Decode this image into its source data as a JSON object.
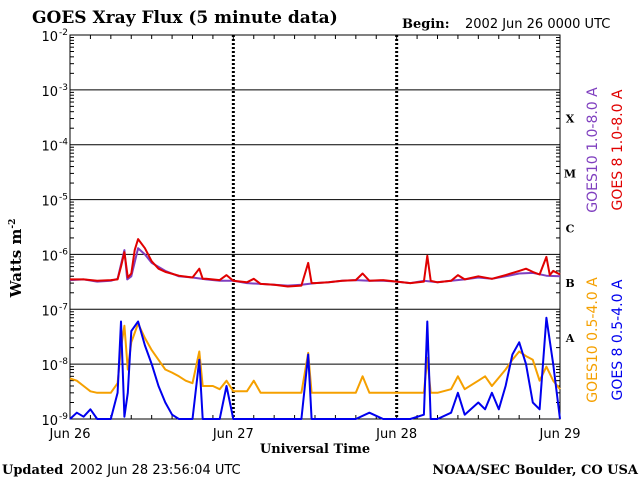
{
  "header": {
    "title": "GOES Xray Flux (5 minute data)",
    "begin_label": "Begin:",
    "begin_value": "2002 Jun 26 0000 UTC"
  },
  "footer": {
    "updated_label": "Updated",
    "updated_value": "2002 Jun 28 23:56:04 UTC",
    "credit": "NOAA/SEC Boulder, CO USA"
  },
  "colors": {
    "goes10_long": "#7f3fbf",
    "goes8_long": "#e00000",
    "goes10_short": "#f5a000",
    "goes8_short": "#0000ee"
  },
  "chart_data": {
    "type": "line",
    "title": "GOES Xray Flux (5 minute data)",
    "xlabel": "Universal Time",
    "ylabel": "Watts m",
    "ylabel_sup": "-2",
    "y_scale": "log",
    "ylim": [
      1e-09,
      0.01
    ],
    "y_ticks": [
      {
        "base": "10",
        "exp": "-9",
        "value": 1e-09
      },
      {
        "base": "10",
        "exp": "-8",
        "value": 1e-08
      },
      {
        "base": "10",
        "exp": "-7",
        "value": 1e-07
      },
      {
        "base": "10",
        "exp": "-6",
        "value": 1e-06
      },
      {
        "base": "10",
        "exp": "-5",
        "value": 1e-05
      },
      {
        "base": "10",
        "exp": "-4",
        "value": 0.0001
      },
      {
        "base": "10",
        "exp": "-3",
        "value": 0.001
      },
      {
        "base": "10",
        "exp": "-2",
        "value": 0.01
      }
    ],
    "xlim": [
      0,
      72
    ],
    "x_unit": "hours since 2002 Jun 26 0000 UTC",
    "x_ticks": [
      {
        "label": "Jun 26",
        "value": 0
      },
      {
        "label": "Jun 27",
        "value": 24
      },
      {
        "label": "Jun 28",
        "value": 48
      },
      {
        "label": "Jun 29",
        "value": 72
      }
    ],
    "flare_classes": [
      {
        "label": "X",
        "value": 0.0003
      },
      {
        "label": "M",
        "value": 3e-05
      },
      {
        "label": "C",
        "value": 3e-06
      },
      {
        "label": "B",
        "value": 3e-07
      },
      {
        "label": "A",
        "value": 3e-08
      }
    ],
    "series": [
      {
        "name": "GOES10 1.0-8.0 A",
        "color": "#7f3fbf",
        "points": [
          [
            0,
            3.4e-07
          ],
          [
            2,
            3.5e-07
          ],
          [
            4,
            3.2e-07
          ],
          [
            6,
            3.3e-07
          ],
          [
            7,
            3.6e-07
          ],
          [
            8,
            1.2e-06
          ],
          [
            8.4,
            3.5e-07
          ],
          [
            9,
            4e-07
          ],
          [
            10,
            1.3e-06
          ],
          [
            11,
            1e-06
          ],
          [
            12,
            7e-07
          ],
          [
            14,
            5e-07
          ],
          [
            16,
            4e-07
          ],
          [
            18,
            3.8e-07
          ],
          [
            20,
            3.5e-07
          ],
          [
            22,
            3.3e-07
          ],
          [
            24,
            3.3e-07
          ],
          [
            26,
            3e-07
          ],
          [
            28,
            2.9e-07
          ],
          [
            30,
            2.8e-07
          ],
          [
            32,
            2.7e-07
          ],
          [
            34,
            2.8e-07
          ],
          [
            36,
            3e-07
          ],
          [
            38,
            3.1e-07
          ],
          [
            40,
            3.3e-07
          ],
          [
            42,
            3.4e-07
          ],
          [
            44,
            3.3e-07
          ],
          [
            46,
            3.3e-07
          ],
          [
            48,
            3.2e-07
          ],
          [
            50,
            3e-07
          ],
          [
            52,
            3.3e-07
          ],
          [
            54,
            3.1e-07
          ],
          [
            56,
            3.3e-07
          ],
          [
            58,
            3.5e-07
          ],
          [
            60,
            3.8e-07
          ],
          [
            62,
            3.6e-07
          ],
          [
            64,
            4e-07
          ],
          [
            66,
            4.5e-07
          ],
          [
            68,
            4.6e-07
          ],
          [
            70,
            4.1e-07
          ],
          [
            72,
            4e-07
          ]
        ]
      },
      {
        "name": "GOES 8 1.0-8.0 A",
        "color": "#e00000",
        "points": [
          [
            0,
            3.5e-07
          ],
          [
            2,
            3.5e-07
          ],
          [
            4,
            3.3e-07
          ],
          [
            6,
            3.4e-07
          ],
          [
            7,
            3.5e-07
          ],
          [
            7.5,
            6e-07
          ],
          [
            8,
            1.1e-06
          ],
          [
            8.5,
            3.8e-07
          ],
          [
            9,
            4.5e-07
          ],
          [
            9.5,
            1.2e-06
          ],
          [
            10,
            1.9e-06
          ],
          [
            11,
            1.3e-06
          ],
          [
            12,
            7.5e-07
          ],
          [
            13,
            5.5e-07
          ],
          [
            14,
            4.8e-07
          ],
          [
            16,
            4.1e-07
          ],
          [
            18,
            3.8e-07
          ],
          [
            19,
            5.5e-07
          ],
          [
            19.5,
            3.6e-07
          ],
          [
            20,
            3.6e-07
          ],
          [
            22,
            3.4e-07
          ],
          [
            23,
            4.2e-07
          ],
          [
            24,
            3.3e-07
          ],
          [
            26,
            3.1e-07
          ],
          [
            27,
            3.6e-07
          ],
          [
            28,
            2.9e-07
          ],
          [
            30,
            2.8e-07
          ],
          [
            32,
            2.6e-07
          ],
          [
            34,
            2.7e-07
          ],
          [
            35,
            7e-07
          ],
          [
            35.5,
            3e-07
          ],
          [
            36,
            3e-07
          ],
          [
            38,
            3.1e-07
          ],
          [
            40,
            3.3e-07
          ],
          [
            42,
            3.4e-07
          ],
          [
            43,
            4.5e-07
          ],
          [
            44,
            3.3e-07
          ],
          [
            46,
            3.4e-07
          ],
          [
            48,
            3.2e-07
          ],
          [
            50,
            3e-07
          ],
          [
            52,
            3.2e-07
          ],
          [
            52.5,
            9.5e-07
          ],
          [
            53,
            3.3e-07
          ],
          [
            54,
            3.1e-07
          ],
          [
            56,
            3.3e-07
          ],
          [
            57,
            4.2e-07
          ],
          [
            58,
            3.5e-07
          ],
          [
            60,
            4e-07
          ],
          [
            62,
            3.6e-07
          ],
          [
            64,
            4.2e-07
          ],
          [
            66,
            5e-07
          ],
          [
            67,
            5.5e-07
          ],
          [
            68,
            4.8e-07
          ],
          [
            69,
            4.3e-07
          ],
          [
            70,
            9e-07
          ],
          [
            70.5,
            4.2e-07
          ],
          [
            71,
            5e-07
          ],
          [
            72,
            4.3e-07
          ]
        ]
      },
      {
        "name": "GOES10 0.5-4.0 A",
        "color": "#f5a000",
        "points": [
          [
            0,
            5.5e-09
          ],
          [
            1,
            5e-09
          ],
          [
            2,
            4e-09
          ],
          [
            3,
            3.2e-09
          ],
          [
            4,
            3e-09
          ],
          [
            6,
            3e-09
          ],
          [
            7,
            4.5e-09
          ],
          [
            7.5,
            2e-08
          ],
          [
            8,
            5e-08
          ],
          [
            8.5,
            8e-09
          ],
          [
            9,
            2.5e-08
          ],
          [
            10,
            5.5e-08
          ],
          [
            11,
            3e-08
          ],
          [
            12,
            1.8e-08
          ],
          [
            13,
            1.2e-08
          ],
          [
            14,
            8e-09
          ],
          [
            15,
            7e-09
          ],
          [
            16,
            6e-09
          ],
          [
            17,
            5e-09
          ],
          [
            18,
            4.5e-09
          ],
          [
            19,
            1.7e-08
          ],
          [
            19.5,
            4e-09
          ],
          [
            20,
            4e-09
          ],
          [
            21,
            4e-09
          ],
          [
            22,
            3.5e-09
          ],
          [
            23,
            5e-09
          ],
          [
            24,
            3.2e-09
          ],
          [
            26,
            3.2e-09
          ],
          [
            27,
            5e-09
          ],
          [
            28,
            3e-09
          ],
          [
            30,
            3e-09
          ],
          [
            32,
            3e-09
          ],
          [
            34,
            3e-09
          ],
          [
            35,
            1.6e-08
          ],
          [
            35.5,
            3e-09
          ],
          [
            36,
            3e-09
          ],
          [
            38,
            3e-09
          ],
          [
            40,
            3e-09
          ],
          [
            42,
            3e-09
          ],
          [
            43,
            6e-09
          ],
          [
            44,
            3e-09
          ],
          [
            46,
            3e-09
          ],
          [
            48,
            3e-09
          ],
          [
            50,
            3e-09
          ],
          [
            52,
            3e-09
          ],
          [
            52.5,
            1.3e-08
          ],
          [
            53,
            3e-09
          ],
          [
            54,
            3e-09
          ],
          [
            56,
            3.5e-09
          ],
          [
            57,
            6e-09
          ],
          [
            58,
            3.5e-09
          ],
          [
            60,
            5e-09
          ],
          [
            61,
            6e-09
          ],
          [
            62,
            4e-09
          ],
          [
            64,
            8e-09
          ],
          [
            65,
            1.2e-08
          ],
          [
            66,
            1.7e-08
          ],
          [
            67,
            1.4e-08
          ],
          [
            68,
            1.2e-08
          ],
          [
            69,
            5e-09
          ],
          [
            70,
            9e-09
          ],
          [
            71,
            5e-09
          ],
          [
            72,
            3.5e-09
          ]
        ]
      },
      {
        "name": "GOES 8 0.5-4.0 A",
        "color": "#0000ee",
        "points": [
          [
            0,
            1e-09
          ],
          [
            1,
            1.3e-09
          ],
          [
            2,
            1.1e-09
          ],
          [
            3,
            1.5e-09
          ],
          [
            4,
            1e-09
          ],
          [
            6,
            1e-09
          ],
          [
            7,
            3e-09
          ],
          [
            7.5,
            6e-08
          ],
          [
            8,
            1.1e-09
          ],
          [
            8.5,
            3e-09
          ],
          [
            9,
            4e-08
          ],
          [
            10,
            6e-08
          ],
          [
            11,
            2.2e-08
          ],
          [
            12,
            1e-08
          ],
          [
            13,
            4e-09
          ],
          [
            14,
            2e-09
          ],
          [
            15,
            1.2e-09
          ],
          [
            16,
            1e-09
          ],
          [
            18,
            1e-09
          ],
          [
            19,
            1.2e-08
          ],
          [
            19.5,
            1e-09
          ],
          [
            20,
            1e-09
          ],
          [
            22,
            1e-09
          ],
          [
            23,
            4e-09
          ],
          [
            24,
            1e-09
          ],
          [
            26,
            1e-09
          ],
          [
            28,
            1e-09
          ],
          [
            30,
            1e-09
          ],
          [
            32,
            1e-09
          ],
          [
            34,
            1e-09
          ],
          [
            35,
            1.5e-08
          ],
          [
            35.5,
            1e-09
          ],
          [
            36,
            1e-09
          ],
          [
            38,
            1e-09
          ],
          [
            40,
            1e-09
          ],
          [
            42,
            1e-09
          ],
          [
            44,
            1.3e-09
          ],
          [
            46,
            1e-09
          ],
          [
            48,
            1e-09
          ],
          [
            50,
            1e-09
          ],
          [
            52,
            1.2e-09
          ],
          [
            52.5,
            6e-08
          ],
          [
            53,
            1e-09
          ],
          [
            54,
            1e-09
          ],
          [
            56,
            1.3e-09
          ],
          [
            57,
            3e-09
          ],
          [
            58,
            1.2e-09
          ],
          [
            60,
            2e-09
          ],
          [
            61,
            1.5e-09
          ],
          [
            62,
            3e-09
          ],
          [
            63,
            1.5e-09
          ],
          [
            64,
            4e-09
          ],
          [
            65,
            1.5e-08
          ],
          [
            66,
            2.5e-08
          ],
          [
            67,
            1e-08
          ],
          [
            68,
            2e-09
          ],
          [
            69,
            1.5e-09
          ],
          [
            70,
            7e-08
          ],
          [
            71,
            1e-08
          ],
          [
            72,
            1e-09
          ]
        ]
      }
    ]
  }
}
